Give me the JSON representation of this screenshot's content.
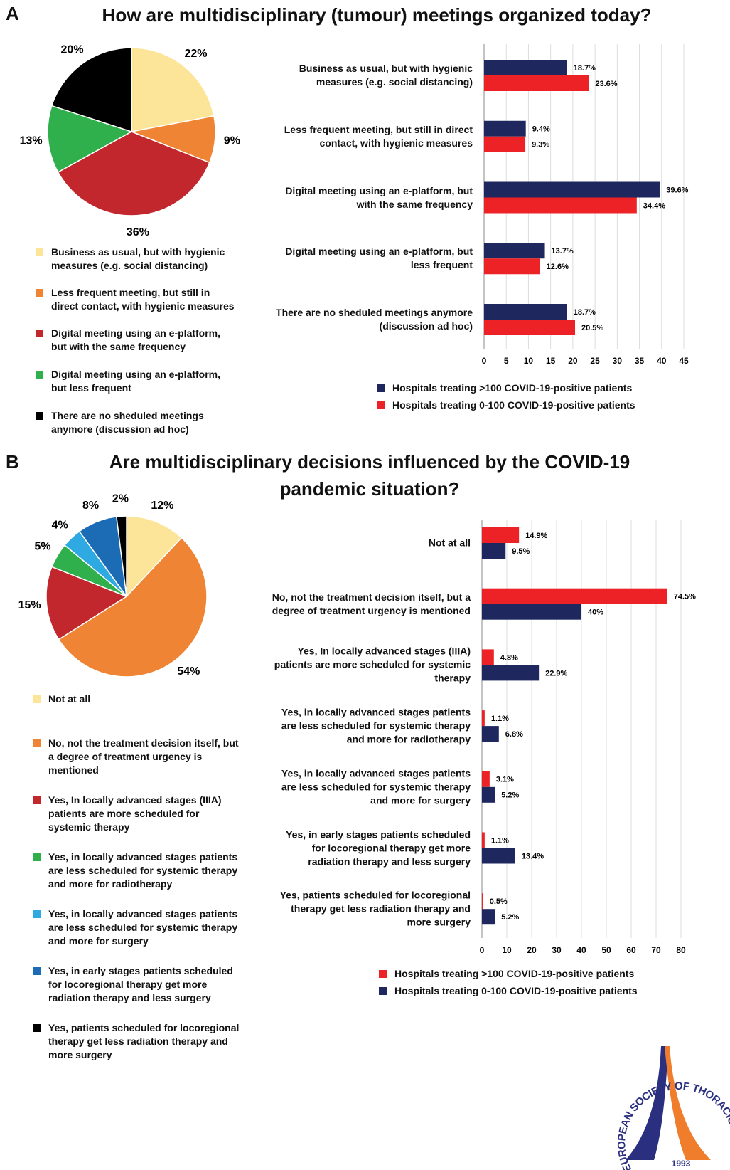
{
  "panels": [
    {
      "label": "A",
      "title": "How are multidisciplinary (tumour) meetings organized today?"
    },
    {
      "label": "B",
      "title": "Are multidisciplinary decisions influenced by the COVID-19 pandemic situation?"
    }
  ],
  "chart_data": [
    {
      "type": "pie",
      "categories": [
        "Business as usual, but with hygienic measures (e.g. social distancing)",
        "Less frequent meeting, but still in direct contact, with hygienic measures",
        "Digital meeting using an e-platform, but with the same frequency",
        "Digital meeting using an e-platform, but less frequent",
        "There are no sheduled meetings anymore (discussion ad hoc)"
      ],
      "values": [
        22,
        9,
        36,
        13,
        20
      ],
      "value_labels": [
        "22%",
        "9%",
        "36%",
        "13%",
        "20%"
      ],
      "colors": [
        "#fce599",
        "#ef8534",
        "#c1272d",
        "#2fb04c",
        "#000000"
      ]
    },
    {
      "type": "hbar",
      "categories": [
        "Business as usual, but with hygienic measures (e.g. social distancing)",
        "Less frequent meeting, but still in direct contact, with hygienic measures",
        "Digital meeting using an e-platform, but with the same frequency",
        "Digital meeting using an e-platform, but less frequent",
        "There are no sheduled meetings anymore (discussion ad hoc)"
      ],
      "series": [
        {
          "name": "Hospitals treating >100 COVID-19-positive patients",
          "color": "#1f285e",
          "values": [
            18.7,
            9.4,
            39.6,
            13.7,
            18.7
          ],
          "value_labels": [
            "18.7%",
            "9.4%",
            "39.6%",
            "13.7%",
            "18.7%"
          ]
        },
        {
          "name": "Hospitals treating 0-100 COVID-19-positive patients",
          "color": "#ec2227",
          "values": [
            23.6,
            9.3,
            34.4,
            12.6,
            20.5
          ],
          "value_labels": [
            "23.6%",
            "9.3%",
            "34.4%",
            "12.6%",
            "20.5%"
          ]
        }
      ],
      "xlim": [
        0,
        45
      ],
      "xticks": [
        0,
        5,
        10,
        15,
        20,
        25,
        30,
        35,
        40,
        45
      ],
      "grid": true
    },
    {
      "type": "pie",
      "categories": [
        "Not at all",
        "No, not the treatment decision itself, but a degree of treatment urgency is mentioned",
        "Yes, In locally advanced stages (IIIA) patients are more scheduled for systemic therapy",
        "Yes, in locally advanced stages patients are less scheduled for systemic therapy and more for radiotherapy",
        "Yes, in locally advanced stages patients are less scheduled for systemic therapy and more for surgery",
        "Yes, in early stages patients scheduled for locoregional therapy get more radiation therapy and less surgery",
        "Yes, patients scheduled for locoregional therapy get less radiation therapy and more surgery"
      ],
      "values": [
        12,
        54,
        15,
        5,
        4,
        8,
        2
      ],
      "value_labels": [
        "12%",
        "54%",
        "15%",
        "5%",
        "4%",
        "8%",
        "2%"
      ],
      "colors": [
        "#fce599",
        "#ef8534",
        "#c1272d",
        "#2fb04c",
        "#2ea9e1",
        "#1b6cb5",
        "#000000"
      ]
    },
    {
      "type": "hbar",
      "categories": [
        "Not at all",
        "No, not the treatment decision itself, but a degree of treatment urgency is mentioned",
        "Yes, In locally advanced stages (IIIA) patients are more scheduled for systemic therapy",
        "Yes, in locally advanced stages patients are less scheduled for systemic therapy and more for radiotherapy",
        "Yes, in locally advanced stages patients are less scheduled for systemic therapy and more for surgery",
        "Yes, in early stages patients scheduled for locoregional therapy get more radiation therapy and less surgery",
        "Yes, patients scheduled for locoregional therapy get less radiation therapy and more surgery"
      ],
      "series": [
        {
          "name": "Hospitals treating >100 COVID-19-positive patients",
          "color": "#ec2227",
          "values": [
            14.9,
            74.5,
            4.8,
            1.1,
            3.1,
            1.1,
            0.5
          ],
          "value_labels": [
            "14.9%",
            "74.5%",
            "4.8%",
            "1.1%",
            "3.1%",
            "1.1%",
            "0.5%"
          ]
        },
        {
          "name": "Hospitals treating 0-100 COVID-19-positive patients",
          "color": "#1f285e",
          "values": [
            9.5,
            40,
            22.9,
            6.8,
            5.2,
            13.4,
            5.2
          ],
          "value_labels": [
            "9.5%",
            "40%",
            "22.9%",
            "6.8%",
            "5.2%",
            "13.4%",
            "5.2%"
          ]
        }
      ],
      "xlim": [
        0,
        80
      ],
      "xticks": [
        0,
        10,
        20,
        30,
        40,
        50,
        60,
        70,
        80
      ],
      "grid": true
    }
  ],
  "logo": {
    "text": "EUROPEAN SOCIETY OF THORACIC SURGEONS",
    "year": "1993"
  }
}
